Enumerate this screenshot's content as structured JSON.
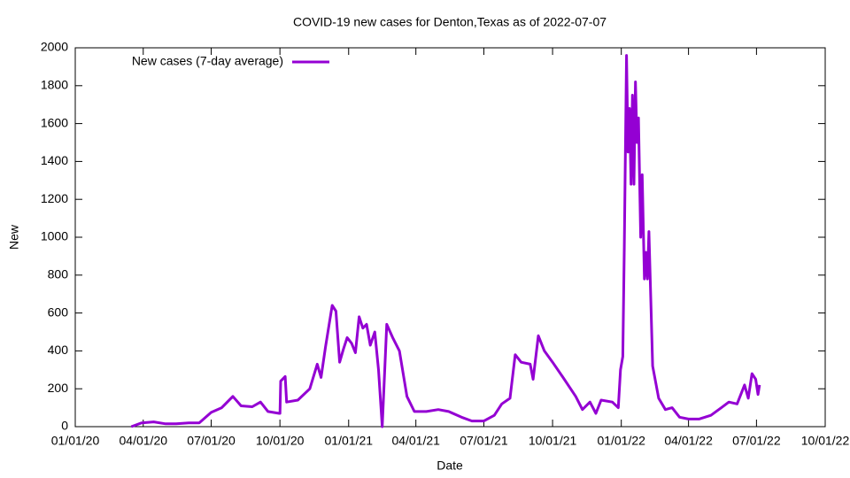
{
  "chart_data": {
    "type": "line",
    "title": "COVID-19 new cases for Denton,Texas as of 2022-07-07",
    "xlabel": "Date",
    "ylabel": "New",
    "x": [
      "03/16/20",
      "03/30/20",
      "04/15/20",
      "05/01/20",
      "05/15/20",
      "06/01/20",
      "06/15/20",
      "07/01/20",
      "07/15/20",
      "07/30/20",
      "08/10/20",
      "08/25/20",
      "09/05/20",
      "09/15/20",
      "09/30/20",
      "10/01/20",
      "10/02/20",
      "10/08/20",
      "10/10/20",
      "10/25/20",
      "11/10/20",
      "11/20/20",
      "11/25/20",
      "12/01/20",
      "12/10/20",
      "12/15/20",
      "12/20/20",
      "12/25/20",
      "12/30/20",
      "01/05/21",
      "01/10/21",
      "01/15/21",
      "01/20/21",
      "01/25/21",
      "01/30/21",
      "02/05/21",
      "02/10/21",
      "02/15/21",
      "02/21/21",
      "03/01/21",
      "03/10/21",
      "03/20/21",
      "03/30/21",
      "04/15/21",
      "05/01/21",
      "05/15/21",
      "06/01/21",
      "06/15/21",
      "07/01/21",
      "07/15/21",
      "07/25/21",
      "08/05/21",
      "08/12/21",
      "08/20/21",
      "09/01/21",
      "09/05/21",
      "09/12/21",
      "09/20/21",
      "10/01/21",
      "10/15/21",
      "11/01/21",
      "11/10/21",
      "11/20/21",
      "11/28/21",
      "12/05/21",
      "12/20/21",
      "12/28/21",
      "12/31/21",
      "01/03/22",
      "01/05/22",
      "01/08/22",
      "01/10/22",
      "01/12/22",
      "01/14/22",
      "01/16/22",
      "01/18/22",
      "01/20/22",
      "01/22/22",
      "01/24/22",
      "01/27/22",
      "01/29/22",
      "02/01/22",
      "02/03/22",
      "02/05/22",
      "02/07/22",
      "02/12/22",
      "02/20/22",
      "03/01/22",
      "03/10/22",
      "03/20/22",
      "04/01/22",
      "04/15/22",
      "05/01/22",
      "05/15/22",
      "05/25/22",
      "06/05/22",
      "06/15/22",
      "06/20/22",
      "06/25/22",
      "06/30/22",
      "07/03/22",
      "07/05/22"
    ],
    "series": [
      {
        "name": "New cases (7-day average)",
        "color": "#9400d3",
        "values": [
          0,
          20,
          25,
          15,
          15,
          20,
          20,
          75,
          100,
          160,
          110,
          105,
          130,
          80,
          70,
          70,
          240,
          265,
          130,
          140,
          200,
          330,
          260,
          420,
          640,
          610,
          340,
          410,
          470,
          440,
          390,
          580,
          520,
          540,
          430,
          500,
          300,
          0,
          540,
          470,
          400,
          160,
          80,
          80,
          90,
          80,
          50,
          30,
          30,
          60,
          120,
          150,
          380,
          340,
          330,
          250,
          480,
          400,
          340,
          260,
          160,
          90,
          130,
          70,
          140,
          130,
          100,
          300,
          370,
          950,
          1960,
          1450,
          1680,
          1280,
          1750,
          1280,
          1820,
          1500,
          1630,
          1000,
          1330,
          780,
          920,
          780,
          1030,
          320,
          150,
          90,
          100,
          50,
          40,
          40,
          60,
          100,
          130,
          120,
          220,
          150,
          280,
          250,
          170,
          220
        ]
      }
    ],
    "xlim": [
      "01/01/20",
      "10/01/22"
    ],
    "xticks": [
      "01/01/20",
      "04/01/20",
      "07/01/20",
      "10/01/20",
      "01/01/21",
      "04/01/21",
      "07/01/21",
      "10/01/21",
      "01/01/22",
      "04/01/22",
      "07/01/22",
      "10/01/22"
    ],
    "ylim": [
      0,
      2000
    ],
    "yticks": [
      0,
      200,
      400,
      600,
      800,
      1000,
      1200,
      1400,
      1600,
      1800,
      2000
    ],
    "legend": "top-left"
  }
}
